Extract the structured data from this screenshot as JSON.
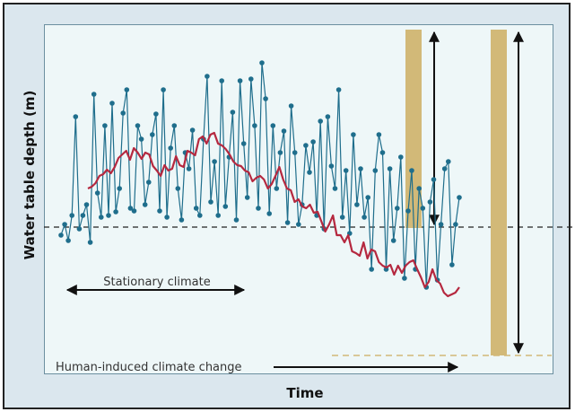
{
  "axes": {
    "ylabel": "Water table depth (m)",
    "xlabel": "Time"
  },
  "annotations": {
    "stationary": "Stationary climate",
    "change": "Human-induced climate change"
  },
  "colors": {
    "observed": "#1f6e8c",
    "moving_average": "#b5283f",
    "bar": "#d2b978",
    "background": "#dbe7ee",
    "plot_bg": "#eef7f8"
  },
  "chart_data": {
    "type": "line",
    "xlabel": "Time",
    "ylabel": "Water table depth (m)",
    "x_index_range": [
      0,
      110
    ],
    "series_observed": [
      262,
      250,
      268,
      240,
      130,
      255,
      240,
      228,
      270,
      105,
      215,
      242,
      140,
      240,
      115,
      236,
      210,
      126,
      100,
      232,
      235,
      140,
      155,
      228,
      203,
      150,
      127,
      235,
      100,
      242,
      165,
      140,
      210,
      245,
      170,
      188,
      145,
      232,
      240,
      155,
      85,
      225,
      180,
      240,
      90,
      230,
      175,
      125,
      245,
      90,
      160,
      220,
      88,
      140,
      232,
      70,
      110,
      238,
      140,
      210,
      170,
      146,
      248,
      118,
      170,
      250,
      228,
      162,
      192,
      158,
      240,
      135,
      255,
      130,
      185,
      210,
      100,
      242,
      190,
      260,
      150,
      228,
      188,
      242,
      220,
      300,
      190,
      150,
      170,
      300,
      188,
      268,
      232,
      175,
      310,
      235,
      190,
      300,
      210,
      232,
      320,
      225,
      200,
      312,
      250,
      188,
      180,
      295,
      250,
      220
    ],
    "series_moving_average": [
      210,
      208,
      204,
      196,
      194,
      189,
      193,
      186,
      176,
      172,
      168,
      178,
      165,
      170,
      177,
      170,
      172,
      185,
      190,
      196,
      184,
      190,
      188,
      174,
      184,
      186,
      168,
      170,
      173,
      155,
      152,
      160,
      150,
      148,
      160,
      162,
      166,
      172,
      180,
      184,
      185,
      190,
      192,
      202,
      198,
      196,
      200,
      210,
      205,
      196,
      186,
      200,
      210,
      212,
      225,
      222,
      230,
      232,
      228,
      237,
      236,
      247,
      258,
      250,
      240,
      262,
      262,
      270,
      262,
      280,
      282,
      285,
      270,
      288,
      278,
      280,
      292,
      296,
      298,
      295,
      306,
      296,
      304,
      296,
      292,
      290,
      300,
      309,
      320,
      314,
      300,
      312,
      316,
      326,
      330,
      328,
      326,
      320
    ]
  }
}
